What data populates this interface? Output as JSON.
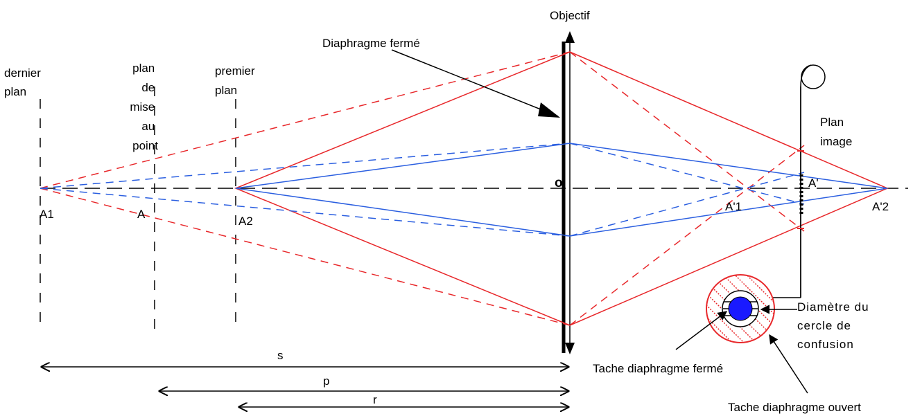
{
  "labels": {
    "objectif": "Objectif",
    "diaphragme_ferme": "Diaphragme fermé",
    "dernier_plan": [
      "dernier",
      "plan"
    ],
    "plan_mise_au_point": [
      "plan",
      "de",
      "mise",
      "au",
      "point"
    ],
    "premier_plan": [
      "premier",
      "plan"
    ],
    "plan_image": [
      "Plan",
      "image"
    ],
    "point_o": "o",
    "a1": "A1",
    "a": "A",
    "a2": "A2",
    "a_prime": "A'",
    "a_prime_1": "A'1",
    "a_prime_2": "A'2",
    "cercle_confusion": [
      "Diamètre du",
      "cercle de",
      "confusion"
    ],
    "tache_ferme": "Tache diaphragme fermé",
    "tache_ouvert": "Tache diaphragme ouvert",
    "s": "s",
    "p": "p",
    "r": "r"
  },
  "colors": {
    "red": "#e8282b",
    "blue": "#2b5fe0",
    "black": "#000000"
  }
}
